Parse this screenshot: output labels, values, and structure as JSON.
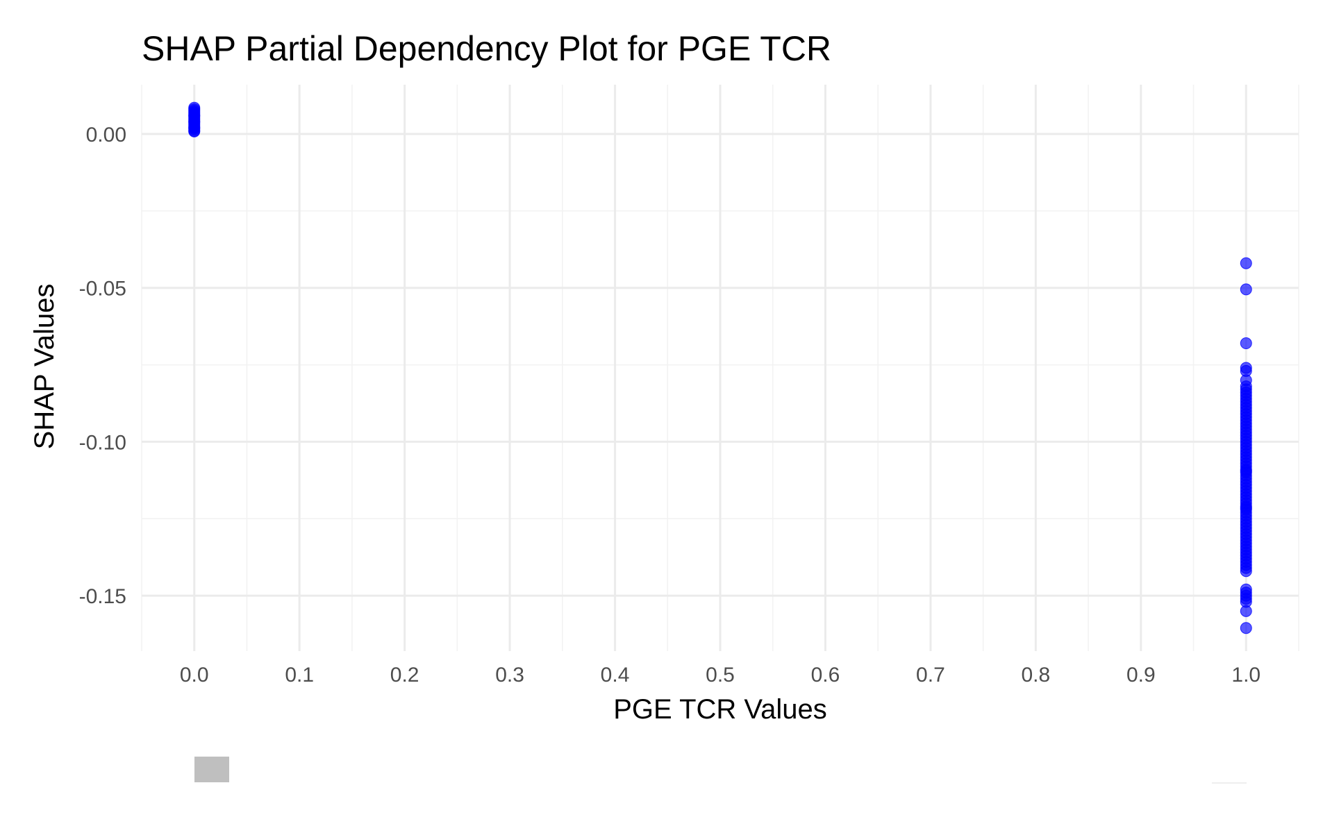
{
  "chart_data": {
    "type": "scatter",
    "title": "SHAP Partial Dependency Plot for PGE TCR",
    "xlabel": "PGE TCR Values",
    "ylabel": "SHAP Values",
    "xlim": [
      -0.05,
      1.05
    ],
    "ylim": [
      -0.168,
      0.016
    ],
    "x_ticks": [
      0.0,
      0.1,
      0.2,
      0.3,
      0.4,
      0.5,
      0.6,
      0.7,
      0.8,
      0.9,
      1.0
    ],
    "x_tick_labels": [
      "0.0",
      "0.1",
      "0.2",
      "0.3",
      "0.4",
      "0.5",
      "0.6",
      "0.7",
      "0.8",
      "0.9",
      "1.0"
    ],
    "y_ticks": [
      0.0,
      -0.05,
      -0.1,
      -0.15
    ],
    "y_tick_labels": [
      "0.00",
      "-0.05",
      "-0.10",
      "-0.15"
    ],
    "grid": true,
    "point_color": "#0000ff",
    "point_opacity": 0.65,
    "series": [
      {
        "x": [
          0,
          0,
          0,
          0,
          0,
          0,
          0,
          0,
          0,
          0,
          0,
          0,
          0,
          0,
          0,
          0,
          0,
          0,
          0,
          0
        ],
        "y": [
          0.0085,
          0.008,
          0.0075,
          0.007,
          0.0065,
          0.006,
          0.0055,
          0.005,
          0.0045,
          0.004,
          0.0035,
          0.003,
          0.0025,
          0.002,
          0.0015,
          0.001,
          0.0008,
          0.006,
          0.004,
          0.002
        ]
      },
      {
        "x": [
          1,
          1,
          1,
          1,
          1,
          1,
          1,
          1,
          1,
          1,
          1,
          1,
          1,
          1,
          1,
          1,
          1,
          1,
          1,
          1,
          1,
          1,
          1,
          1,
          1,
          1,
          1,
          1,
          1,
          1,
          1,
          1,
          1,
          1,
          1,
          1,
          1,
          1,
          1,
          1,
          1,
          1,
          1,
          1,
          1,
          1,
          1,
          1,
          1,
          1,
          1,
          1,
          1,
          1,
          1,
          1,
          1,
          1,
          1,
          1,
          1,
          1,
          1,
          1,
          1,
          1,
          1,
          1,
          1,
          1,
          1,
          1,
          1,
          1,
          1,
          1
        ],
        "y": [
          -0.042,
          -0.0505,
          -0.068,
          -0.076,
          -0.077,
          -0.08,
          -0.082,
          -0.083,
          -0.084,
          -0.085,
          -0.086,
          -0.087,
          -0.088,
          -0.089,
          -0.09,
          -0.091,
          -0.092,
          -0.093,
          -0.094,
          -0.095,
          -0.096,
          -0.097,
          -0.098,
          -0.099,
          -0.1,
          -0.101,
          -0.102,
          -0.103,
          -0.104,
          -0.105,
          -0.106,
          -0.107,
          -0.108,
          -0.109,
          -0.11,
          -0.111,
          -0.112,
          -0.113,
          -0.114,
          -0.115,
          -0.116,
          -0.117,
          -0.118,
          -0.119,
          -0.12,
          -0.121,
          -0.122,
          -0.123,
          -0.124,
          -0.125,
          -0.126,
          -0.127,
          -0.128,
          -0.129,
          -0.13,
          -0.131,
          -0.132,
          -0.133,
          -0.134,
          -0.135,
          -0.136,
          -0.137,
          -0.138,
          -0.139,
          -0.14,
          -0.141,
          -0.142,
          -0.148,
          -0.149,
          -0.15,
          -0.151,
          -0.152,
          -0.155,
          -0.1605,
          -0.1095,
          -0.1215
        ]
      }
    ]
  }
}
